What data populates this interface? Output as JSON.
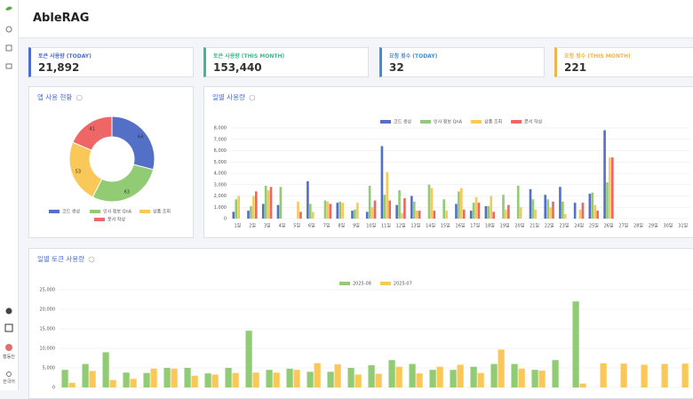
{
  "header": {
    "logo": "AbleRAG"
  },
  "sidebar": {
    "user": "황동진",
    "language": "한국어"
  },
  "stats": [
    {
      "label": "토큰 사용량 (TODAY)",
      "value": "21,892",
      "color": "#4a6fd0"
    },
    {
      "label": "토큰 사용량 (THIS MONTH)",
      "value": "153,440",
      "color": "#3dbb8a"
    },
    {
      "label": "요청 횟수 (TODAY)",
      "value": "32",
      "color": "#3c8fd6"
    },
    {
      "label": "요청 횟수 (THIS MONTH)",
      "value": "221",
      "color": "#f0b44c"
    }
  ],
  "chart_data": [
    {
      "type": "pie",
      "title": "앱 사용 현황",
      "categories": [
        "코드 생성",
        "인사 정보 QnA",
        "상품 조회",
        "문서 작성"
      ],
      "values": [
        64,
        63,
        53,
        41
      ],
      "colors": [
        "#5470c6",
        "#91cc75",
        "#fac858",
        "#ee6666"
      ],
      "donut": true
    },
    {
      "type": "bar",
      "title": "일별 사용량",
      "legend": "top",
      "categories": [
        "1일",
        "2일",
        "3일",
        "4일",
        "5일",
        "6일",
        "7일",
        "8일",
        "9일",
        "10일",
        "11일",
        "12일",
        "13일",
        "14일",
        "15일",
        "16일",
        "17일",
        "18일",
        "19일",
        "20일",
        "21일",
        "22일",
        "23일",
        "24일",
        "25일",
        "26일",
        "27일",
        "28일",
        "29일",
        "30일",
        "31일"
      ],
      "series": [
        {
          "name": "코드 생성",
          "color": "#5470c6",
          "values": [
            600,
            700,
            1300,
            1200,
            0,
            3300,
            0,
            1400,
            700,
            600,
            6400,
            1200,
            2000,
            0,
            0,
            1300,
            700,
            1100,
            0,
            0,
            2600,
            2100,
            2800,
            1400,
            2200,
            7800,
            0,
            0,
            0,
            0,
            0
          ]
        },
        {
          "name": "인사 정보 QnA",
          "color": "#91cc75",
          "values": [
            1700,
            1100,
            2900,
            2800,
            0,
            1300,
            1600,
            1500,
            800,
            2900,
            2100,
            2500,
            1500,
            3000,
            1700,
            2400,
            1400,
            1100,
            2100,
            2900,
            1700,
            1700,
            1500,
            0,
            2300,
            3200,
            0,
            0,
            0,
            0,
            0
          ]
        },
        {
          "name": "상품 조회",
          "color": "#fac858",
          "values": [
            2000,
            2000,
            2500,
            0,
            1500,
            600,
            1500,
            1400,
            1400,
            1000,
            4100,
            500,
            700,
            2700,
            700,
            2700,
            1900,
            2000,
            800,
            1000,
            800,
            1000,
            400,
            800,
            1200,
            5400,
            0,
            0,
            0,
            0,
            0
          ]
        },
        {
          "name": "문서 작성",
          "color": "#ee6666",
          "values": [
            0,
            2400,
            2800,
            0,
            600,
            0,
            1300,
            0,
            0,
            1600,
            1600,
            1800,
            700,
            700,
            0,
            800,
            1400,
            600,
            1200,
            0,
            0,
            1500,
            0,
            1400,
            700,
            5400,
            0,
            0,
            0,
            0,
            0
          ]
        }
      ],
      "ylim": [
        0,
        8000
      ],
      "yticks": [
        0,
        {
          "value": 1000,
          "label": "1,000"
        },
        {
          "value": 2000,
          "label": "2,000"
        },
        {
          "value": 3000,
          "label": "3,000"
        },
        {
          "value": 4000,
          "label": "4,000"
        },
        {
          "value": 5000,
          "label": "5,000"
        },
        {
          "value": 6000,
          "label": "6,000"
        },
        {
          "value": 7000,
          "label": "7,000"
        },
        {
          "value": 8000,
          "label": "8,000"
        }
      ],
      "grid": true
    },
    {
      "type": "bar",
      "title": "일별 토큰 사용량",
      "legend": "top",
      "series": [
        {
          "name": "2025-08",
          "color": "#91cc75",
          "values": [
            4500,
            6000,
            9000,
            3800,
            3700,
            5000,
            5000,
            3600,
            5000,
            14500,
            4500,
            4800,
            4000,
            4000,
            5000,
            5700,
            7000,
            6000,
            4500,
            4500,
            5300,
            6000,
            6000,
            4500,
            7000,
            22000,
            0,
            0,
            0,
            0,
            0
          ]
        },
        {
          "name": "2025-07",
          "color": "#fac858",
          "values": [
            1200,
            4200,
            1900,
            2200,
            4800,
            4800,
            3000,
            3300,
            3700,
            3800,
            3800,
            4500,
            6200,
            5900,
            3300,
            3500,
            5300,
            3600,
            5300,
            5800,
            3700,
            9700,
            4800,
            4300,
            0,
            1000,
            6200,
            6100,
            5800,
            6000,
            6100
          ]
        }
      ],
      "ylim": [
        0,
        25000
      ],
      "yticks": [
        0,
        {
          "value": 5000,
          "label": "5,000"
        },
        {
          "value": 10000,
          "label": "10,000"
        },
        {
          "value": 15000,
          "label": "15,000"
        },
        {
          "value": 20000,
          "label": "20,000"
        },
        {
          "value": 25000,
          "label": "25,000"
        }
      ],
      "grid": true
    }
  ]
}
